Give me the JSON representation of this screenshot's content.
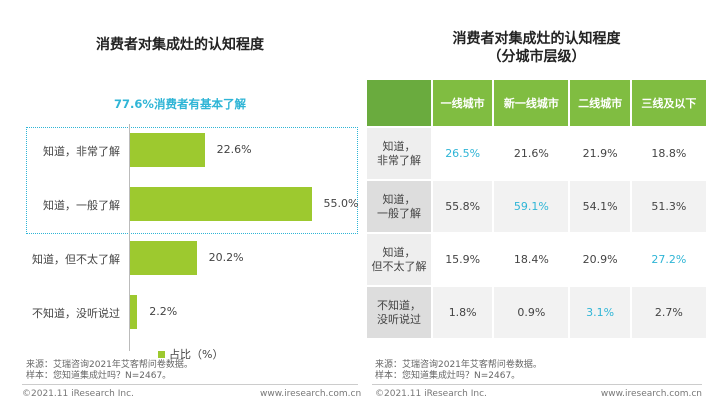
{
  "left": {
    "title": "消费者对集成灶的认知程度",
    "subtitle": "77.6%消费者有基本了解",
    "legend": "占比（%）",
    "source": "来源：艾瑞咨询2021年艾客帮问卷数据。",
    "sample": "样本：您知道集成灶吗？N=2467。"
  },
  "right": {
    "title_line1": "消费者对集成灶的认知程度",
    "title_line2": "（分城市层级）",
    "source": "来源：艾瑞咨询2021年艾客帮问卷数据。",
    "sample": "样本：您知道集成灶吗？N=2467。"
  },
  "footer": {
    "copyright": "©2021.11 iResearch Inc.",
    "url": "www.iresearch.com.cn"
  },
  "colors": {
    "bar": "#9dc92f",
    "highlight": "#2fb5d6",
    "header": "#80bd41"
  },
  "chart_data": [
    {
      "type": "bar",
      "orientation": "horizontal",
      "categories": [
        "知道，非常了解",
        "知道，一般了解",
        "知道，但不太了解",
        "不知道，没听说过"
      ],
      "values": [
        22.6,
        55.0,
        20.2,
        2.2
      ],
      "value_labels": [
        "22.6%",
        "55.0%",
        "20.2%",
        "2.2%"
      ],
      "series": [
        {
          "name": "占比（%）",
          "values": [
            22.6,
            55.0,
            20.2,
            2.2
          ]
        }
      ],
      "title": "消费者对集成灶的认知程度",
      "legend": "bottom"
    },
    {
      "type": "table",
      "columns": [
        "一线城市",
        "新一线城市",
        "二线城市",
        "三线及以下"
      ],
      "rows": [
        {
          "label": [
            "知道，",
            "非常了解"
          ],
          "values": [
            "26.5%",
            "21.6%",
            "21.9%",
            "18.8%"
          ],
          "highlight": 0
        },
        {
          "label": [
            "知道，",
            "一般了解"
          ],
          "values": [
            "55.8%",
            "59.1%",
            "54.1%",
            "51.3%"
          ],
          "highlight": 1
        },
        {
          "label": [
            "知道，",
            "但不太了解"
          ],
          "values": [
            "15.9%",
            "18.4%",
            "20.9%",
            "27.2%"
          ],
          "highlight": 3
        },
        {
          "label": [
            "不知道，",
            "没听说过"
          ],
          "values": [
            "1.8%",
            "0.9%",
            "3.1%",
            "2.7%"
          ],
          "highlight": 2
        }
      ]
    }
  ]
}
